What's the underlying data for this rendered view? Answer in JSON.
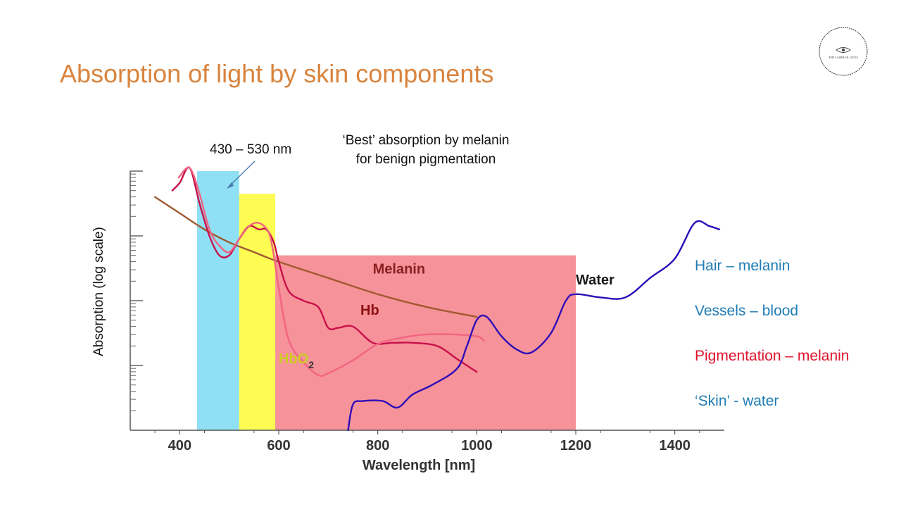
{
  "slide": {
    "title": "Absorption of light by skin components",
    "logo_text": "THE LASER-OL GUYS"
  },
  "callouts": {
    "range": "430 – 530 nm",
    "best_line1": "‘Best’ absorption by melanin",
    "best_line2": "for benign pigmentation"
  },
  "legend": [
    {
      "label": "Hair – melanin",
      "color": "#1F7CB5"
    },
    {
      "label": "Vessels – blood",
      "color": "#1F7CB5"
    },
    {
      "label": "Pigmentation – melanin",
      "color": "#E0122B"
    },
    {
      "label": "‘Skin’ - water",
      "color": "#1F7CB5"
    }
  ],
  "chart_data": {
    "type": "line",
    "title": "",
    "xlabel": "Wavelength [nm]",
    "ylabel": "Absorption (log scale)",
    "xlim": [
      300,
      1500
    ],
    "ylim": [
      0,
      4
    ],
    "x_ticks": [
      400,
      600,
      800,
      1000,
      1200,
      1400
    ],
    "y_decades": [
      1,
      2,
      3
    ],
    "bands": [
      {
        "name": "blue-band",
        "from": 435,
        "to": 520,
        "top": 4.0,
        "color": "#8FE0F4"
      },
      {
        "name": "yellow-band",
        "from": 520,
        "to": 593,
        "top": 3.65,
        "color": "#FCFC52"
      },
      {
        "name": "red-band",
        "from": 593,
        "to": 1200,
        "top": 2.7,
        "color": "#F69299"
      }
    ],
    "series": [
      {
        "name": "Melanin",
        "color": "#A05A32",
        "x": [
          350,
          400,
          450,
          500,
          550,
          600,
          700,
          800,
          900,
          1000
        ],
        "y": [
          3.6,
          3.35,
          3.1,
          2.9,
          2.75,
          2.6,
          2.35,
          2.1,
          1.9,
          1.75
        ]
      },
      {
        "name": "Hb",
        "color": "#C8104A",
        "x": [
          385,
          400,
          420,
          440,
          460,
          480,
          500,
          520,
          540,
          560,
          575,
          590,
          600,
          620,
          650,
          680,
          700,
          720,
          750,
          790,
          830,
          870,
          920,
          960,
          990,
          1000
        ],
        "y": [
          3.7,
          3.82,
          4.05,
          3.5,
          3.0,
          2.7,
          2.7,
          2.95,
          3.15,
          3.1,
          3.1,
          2.9,
          2.6,
          2.15,
          2.0,
          1.9,
          1.58,
          1.58,
          1.6,
          1.35,
          1.35,
          1.35,
          1.3,
          1.1,
          0.95,
          0.9
        ]
      },
      {
        "name": "HbO2",
        "color": "#F26482",
        "x": [
          398,
          420,
          440,
          460,
          480,
          500,
          520,
          540,
          560,
          580,
          590,
          600,
          620,
          650,
          680,
          700,
          750,
          800,
          850,
          900,
          950,
          1000,
          1015
        ],
        "y": [
          3.9,
          4.05,
          3.65,
          3.1,
          2.85,
          2.75,
          2.95,
          3.15,
          3.2,
          3.05,
          2.7,
          2.2,
          1.4,
          1.05,
          0.85,
          0.88,
          1.08,
          1.33,
          1.43,
          1.48,
          1.48,
          1.45,
          1.38
        ]
      },
      {
        "name": "Water",
        "color": "#2E0CB8",
        "x": [
          740,
          750,
          770,
          810,
          840,
          870,
          910,
          960,
          980,
          1000,
          1020,
          1050,
          1080,
          1110,
          1150,
          1180,
          1200,
          1250,
          1300,
          1350,
          1400,
          1440,
          1470,
          1490
        ],
        "y": [
          0.0,
          0.4,
          0.45,
          0.45,
          0.35,
          0.55,
          0.7,
          0.95,
          1.3,
          1.7,
          1.75,
          1.45,
          1.25,
          1.2,
          1.5,
          2.0,
          2.1,
          2.05,
          2.05,
          2.35,
          2.65,
          3.2,
          3.15,
          3.1
        ]
      }
    ],
    "annotations": [
      {
        "text": "Melanin",
        "x": 790,
        "y": 2.42,
        "color": "#8B2020"
      },
      {
        "text": "Hb",
        "x": 765,
        "y": 1.78,
        "color": "#8B1010"
      },
      {
        "text": "HbO",
        "x": 600,
        "y": 1.03,
        "color": "#CCCC22",
        "sub": "2"
      },
      {
        "text": "Water",
        "x": 1200,
        "y": 2.25,
        "color": "#1A1A1A"
      }
    ]
  }
}
